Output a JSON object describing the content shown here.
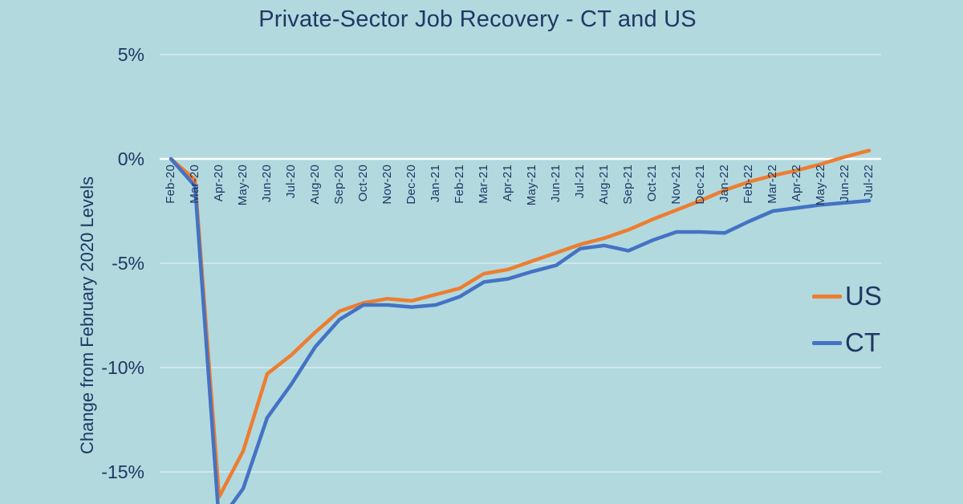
{
  "colors": {
    "background": "#b2d9de",
    "text_navy": "#1f3864",
    "axis_zero_line": "#ffffff",
    "gridline": "rgba(255,255,255,0.5)",
    "us_orange": "#ED7D31",
    "ct_blue": "#4472C4"
  },
  "chart_data": {
    "type": "line",
    "title": "Private-Sector Job Recovery - CT and US",
    "xlabel": "",
    "ylabel": "Change from February 2020 Levels",
    "ylim": [
      -17.5,
      5
    ],
    "grid": true,
    "legend_position": "right",
    "y_ticks": [
      {
        "label": "5%",
        "value": 5
      },
      {
        "label": "0%",
        "value": 0
      },
      {
        "label": "-5%",
        "value": -5
      },
      {
        "label": "-10%",
        "value": -10
      },
      {
        "label": "-15%",
        "value": -15
      }
    ],
    "x": [
      "Feb-20",
      "Mar-20",
      "Apr-20",
      "May-20",
      "Jun-20",
      "Jul-20",
      "Aug-20",
      "Sep-20",
      "Oct-20",
      "Nov-20",
      "Dec-20",
      "Jan-21",
      "Feb-21",
      "Mar-21",
      "Apr-21",
      "May-21",
      "Jun-21",
      "Jul-21",
      "Aug-21",
      "Sep-21",
      "Oct-21",
      "Nov-21",
      "Dec-21",
      "Jan-22",
      "Feb-22",
      "Mar-22",
      "Apr-22",
      "May-22",
      "Jun-22",
      "Jul-22"
    ],
    "series": [
      {
        "name": "US",
        "color": "#ED7D31",
        "values": [
          0.0,
          -1.0,
          -16.2,
          -14.0,
          -10.3,
          -9.4,
          -8.3,
          -7.3,
          -6.9,
          -6.7,
          -6.8,
          -6.5,
          -6.2,
          -5.5,
          -5.3,
          -4.9,
          -4.5,
          -4.1,
          -3.8,
          -3.4,
          -2.9,
          -2.45,
          -2.0,
          -1.5,
          -1.1,
          -0.8,
          -0.55,
          -0.25,
          0.1,
          0.4
        ]
      },
      {
        "name": "CT",
        "color": "#4472C4",
        "values": [
          0.0,
          -1.3,
          -17.4,
          -15.8,
          -12.4,
          -10.8,
          -9.0,
          -7.7,
          -7.0,
          -7.0,
          -7.1,
          -7.0,
          -6.6,
          -5.9,
          -5.75,
          -5.4,
          -5.1,
          -4.3,
          -4.15,
          -4.4,
          -3.9,
          -3.5,
          -3.5,
          -3.55,
          -3.0,
          -2.5,
          -2.35,
          -2.2,
          -2.1,
          -2.0
        ]
      }
    ]
  }
}
